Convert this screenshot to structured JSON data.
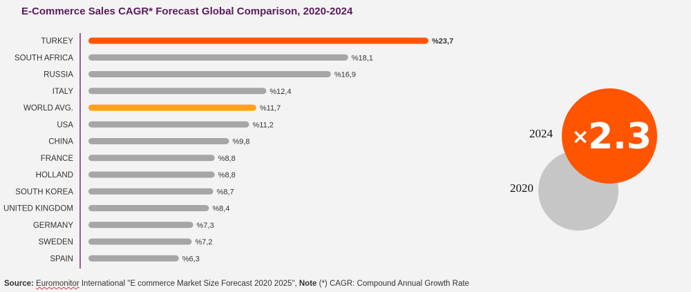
{
  "chart_data": {
    "type": "bar",
    "orientation": "horizontal",
    "title": "E-Commerce Sales CAGR* Forecast Global Comparison, 2020-2024",
    "value_prefix": "%",
    "decimal_separator": ",",
    "categories": [
      "TURKEY",
      "SOUTH AFRICA",
      "RUSSIA",
      "ITALY",
      "WORLD AVG.",
      "USA",
      "CHINA",
      "FRANCE",
      "HOLLAND",
      "SOUTH KOREA",
      "UNITED KINGDOM",
      "GERMANY",
      "SWEDEN",
      "SPAIN"
    ],
    "values": [
      23.7,
      18.1,
      16.9,
      12.4,
      11.7,
      11.2,
      9.8,
      8.8,
      8.8,
      8.7,
      8.4,
      7.3,
      7.2,
      6.3
    ],
    "value_labels": [
      "%23,7",
      "%18,1",
      "%16,9",
      "%12,4",
      "%11,7",
      "%11,2",
      "%9,8",
      "%8,8",
      "%8,8",
      "%8,7",
      "%8,4",
      "%7,3",
      "%7,2",
      "%6,3"
    ],
    "highlight": {
      "TURKEY": "#ff5400",
      "WORLD AVG.": "#ffa21a"
    },
    "bar_color": "#a6a6a6",
    "axis_color": "#7b2a7b",
    "xlim": [
      0,
      23.7
    ]
  },
  "comparison": {
    "year_start": "2020",
    "year_end": "2024",
    "multiplier_symbol": "×",
    "multiplier_value": "2.3",
    "color_start": "#c6c6c6",
    "color_end": "#ff5400"
  },
  "footer": {
    "source_label": "Source:",
    "source_org": "Euromonitor",
    "source_text": " International \"E commerce Market Size Forecast 2020 2025\", ",
    "note_label": "Note",
    "note_text": " (*) CAGR: Compound Annual Growth Rate"
  }
}
